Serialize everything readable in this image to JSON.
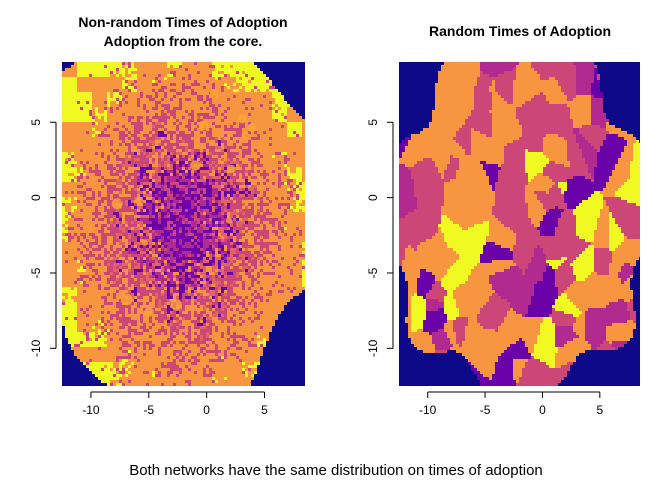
{
  "figure_caption": "Both networks have the same distribution on times of adoption",
  "colors": {
    "background": "#0d0887",
    "palette": [
      "#0d0887",
      "#6a00a8",
      "#b12a90",
      "#cc4778",
      "#f89540",
      "#f0f921"
    ],
    "outer_orange": "#f89540",
    "yellow": "#f0f921",
    "magenta": "#cc4778",
    "purple": "#6a00a8"
  },
  "chart_data": [
    {
      "type": "heatmap",
      "title": "Non-random Times of Adoption",
      "subtitle": "Adoption from the core.",
      "xlabel": "",
      "ylabel": "",
      "xlim": [
        -12.5,
        8.5
      ],
      "ylim": [
        -12.5,
        9
      ],
      "x_ticks": [
        -10,
        -5,
        0,
        5
      ],
      "y_ticks": [
        -10,
        -5,
        0,
        5
      ],
      "x_tick_labels": [
        "-10",
        "-5",
        "0",
        "5"
      ],
      "y_tick_labels": [
        "-10",
        "-5",
        "0",
        "5"
      ],
      "pattern": "core",
      "description_values": "Adoption time increases with distance from center (-2, -2); earliest adopters (dark purple) concentrated in the core, latest (yellow) at the periphery.",
      "core_center": [
        -2,
        -2
      ]
    },
    {
      "type": "heatmap",
      "title": "Random Times of Adoption",
      "xlabel": "",
      "ylabel": "",
      "xlim": [
        -12.5,
        8.5
      ],
      "ylim": [
        -12.5,
        9
      ],
      "x_ticks": [
        -10,
        -5,
        0,
        5
      ],
      "y_ticks": [
        -10,
        -5,
        0,
        5
      ],
      "x_tick_labels": [
        "-10",
        "-5",
        "0",
        "5"
      ],
      "y_tick_labels": [
        "-10",
        "-5",
        "0",
        "5"
      ],
      "pattern": "random"
    }
  ]
}
